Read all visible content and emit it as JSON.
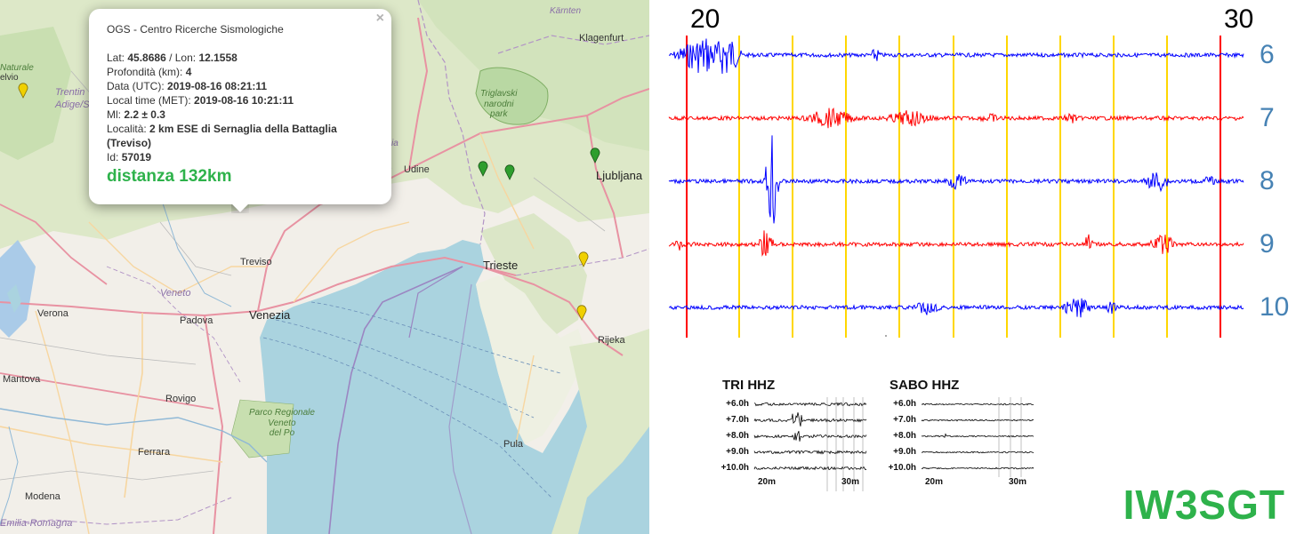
{
  "map": {
    "labels": {
      "karnten": "Kärnten",
      "klagenfurt": "Klagenfurt",
      "triglav": "Triglavski\nnarodni\npark",
      "trentino": "Trentin\nAdige/S",
      "naturale": "Naturale",
      "elvio": "elvio",
      "udine": "Udine",
      "ljubljana": "Ljubljana",
      "treviso": "Treviso",
      "veneto": "Veneto",
      "verona": "Verona",
      "padova": "Padova",
      "venezia": "Venezia",
      "trieste": "Trieste",
      "rijeka": "Rijeka",
      "mantova": "Mantova",
      "rovigo": "Rovigo",
      "po_park": "Parco Regionale\nVeneto\ndel Po",
      "ferrara": "Ferrara",
      "pula": "Pula",
      "modena": "Modena",
      "emilia": "Emilia-Romagna",
      "pordenone_hint": "ia"
    },
    "markers": [
      {
        "name": "yellow",
        "color": "#f0d000"
      },
      {
        "name": "green",
        "color": "#2e9e2e"
      }
    ]
  },
  "popup": {
    "agency": "OGS - Centro Ricerche Sismologiche",
    "lat_label": "Lat: ",
    "lat": "45.8686",
    "lon_label": " / Lon: ",
    "lon": "12.1558",
    "depth_label": "Profondità (km): ",
    "depth": "4",
    "utc_label": "Data (UTC): ",
    "utc": "2019-08-16 08:21:11",
    "local_label": "Local time (MET): ",
    "local": "2019-08-16 10:21:11",
    "ml_label": "Ml: ",
    "ml": "2.2 ± 0.3",
    "loc_label": "Località: ",
    "loc": "2 km ESE di Sernaglia della Battaglia (Treviso)",
    "id_label": "Id: ",
    "id": "57019",
    "distance": "distanza 132km",
    "close": "×"
  },
  "seismogram": {
    "minute_start": "20",
    "minute_end": "30",
    "hours": [
      "6",
      "7",
      "8",
      "9",
      "10"
    ],
    "trace_colors": [
      "#0000ff",
      "#ff0000",
      "#0000ff",
      "#ff0000",
      "#0000ff"
    ],
    "marker_color_minute": "#ff0000",
    "marker_color_grid": "#ffd700",
    "hour_label_color": "#4682b4"
  },
  "mini_plots": [
    {
      "title": "TRI HHZ",
      "rows": [
        "+6.0h",
        "+7.0h",
        "+8.0h",
        "+9.0h",
        "+10.0h"
      ],
      "xticks": [
        "20m",
        "30m"
      ]
    },
    {
      "title": "SABO HHZ",
      "rows": [
        "+6.0h",
        "+7.0h",
        "+8.0h",
        "+9.0h",
        "+10.0h"
      ],
      "xticks": [
        "20m",
        "30m"
      ]
    }
  ],
  "brand": "IW3SGT"
}
